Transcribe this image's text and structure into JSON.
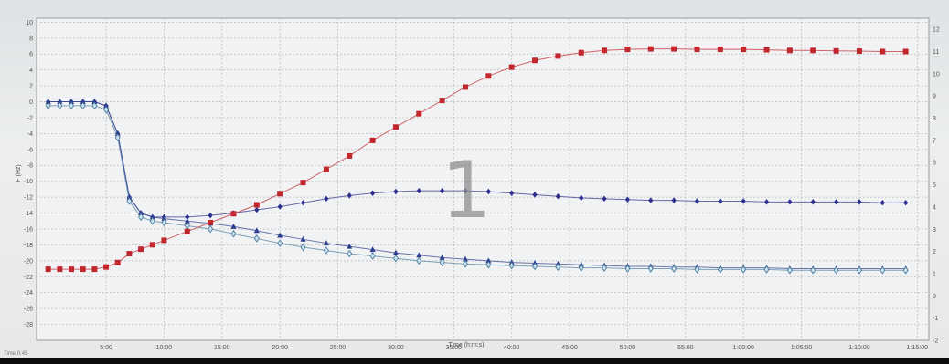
{
  "chart_data": {
    "type": "line",
    "xlabel": "Time (h:m:s)",
    "ylabel": "F (Hz)",
    "overlay_label": "1",
    "status_text": "Time 0:45",
    "x_ticks": [
      "5:00",
      "10:00",
      "15:00",
      "20:00",
      "25:00",
      "30:00",
      "35:00",
      "40:00",
      "45:00",
      "50:00",
      "55:00",
      "1:00:00",
      "1:05:00",
      "1:10:00",
      "1:15:00"
    ],
    "x_tick_minutes": [
      5,
      10,
      15,
      20,
      25,
      30,
      35,
      40,
      45,
      50,
      55,
      60,
      65,
      70,
      75
    ],
    "xlim_minutes": [
      -1,
      76
    ],
    "y_ticks": [
      "10",
      "8",
      "6",
      "4",
      "2",
      "0",
      "-2",
      "-4",
      "-6",
      "-8",
      "-10",
      "-12",
      "-14",
      "-16",
      "-18",
      "-20",
      "-22",
      "-24",
      "-26",
      "-28"
    ],
    "ylim": [
      -30,
      10.5
    ],
    "y2_ticks": [
      "12",
      "11",
      "10",
      "9",
      "8",
      "7",
      "6",
      "5",
      "4",
      "3",
      "2",
      "1",
      "0",
      "-1",
      "-2"
    ],
    "y2lim": [
      -2,
      12.5
    ],
    "grid": true,
    "series": [
      {
        "axis": "left",
        "marker": "diamond",
        "color": "#2c2f8f",
        "x": [
          0,
          1,
          2,
          3,
          4,
          5,
          6,
          7,
          8,
          9,
          10,
          12,
          14,
          16,
          18,
          20,
          22,
          24,
          26,
          28,
          30,
          32,
          34,
          36,
          38,
          40,
          42,
          44,
          46,
          48,
          50,
          52,
          54,
          56,
          58,
          60,
          62,
          64,
          66,
          68,
          70,
          72,
          74
        ],
        "y": [
          0,
          0,
          0,
          0,
          0,
          -0.5,
          -4,
          -12,
          -14,
          -14.5,
          -14.5,
          -14.5,
          -14.3,
          -14,
          -13.6,
          -13.2,
          -12.7,
          -12.2,
          -11.8,
          -11.5,
          -11.3,
          -11.2,
          -11.2,
          -11.2,
          -11.3,
          -11.5,
          -11.7,
          -11.9,
          -12.1,
          -12.2,
          -12.3,
          -12.4,
          -12.4,
          -12.5,
          -12.5,
          -12.5,
          -12.6,
          -12.6,
          -12.6,
          -12.6,
          -12.6,
          -12.7,
          -12.7
        ]
      },
      {
        "axis": "left",
        "marker": "triangle",
        "color": "#2c3f8f",
        "x": [
          0,
          1,
          2,
          3,
          4,
          5,
          6,
          7,
          8,
          9,
          10,
          12,
          14,
          16,
          18,
          20,
          22,
          24,
          26,
          28,
          30,
          32,
          34,
          36,
          38,
          40,
          42,
          44,
          46,
          48,
          50,
          52,
          54,
          56,
          58,
          60,
          62,
          64,
          66,
          68,
          70,
          72,
          74
        ],
        "y": [
          0,
          0,
          0,
          0,
          0,
          -0.5,
          -4,
          -12,
          -14,
          -14.5,
          -14.7,
          -15,
          -15.3,
          -15.7,
          -16.2,
          -16.8,
          -17.3,
          -17.8,
          -18.2,
          -18.6,
          -19,
          -19.3,
          -19.6,
          -19.8,
          -20,
          -20.2,
          -20.3,
          -20.4,
          -20.5,
          -20.6,
          -20.7,
          -20.7,
          -20.8,
          -20.8,
          -20.9,
          -20.9,
          -20.9,
          -21,
          -21,
          -21,
          -21,
          -21,
          -21
        ]
      },
      {
        "axis": "left",
        "marker": "diamond-open",
        "color": "#4a7ea0",
        "x": [
          0,
          1,
          2,
          3,
          4,
          5,
          6,
          7,
          8,
          9,
          10,
          12,
          14,
          16,
          18,
          20,
          22,
          24,
          26,
          28,
          30,
          32,
          34,
          36,
          38,
          40,
          42,
          44,
          46,
          48,
          50,
          52,
          54,
          56,
          58,
          60,
          62,
          64,
          66,
          68,
          70,
          72,
          74
        ],
        "y": [
          -0.5,
          -0.5,
          -0.5,
          -0.5,
          -0.5,
          -1,
          -4.5,
          -12.5,
          -14.5,
          -15,
          -15.2,
          -15.6,
          -16,
          -16.6,
          -17.2,
          -17.8,
          -18.3,
          -18.7,
          -19.1,
          -19.4,
          -19.7,
          -20,
          -20.2,
          -20.4,
          -20.5,
          -20.6,
          -20.7,
          -20.8,
          -20.9,
          -20.9,
          -21,
          -21,
          -21,
          -21.1,
          -21.1,
          -21.1,
          -21.1,
          -21.2,
          -21.2,
          -21.2,
          -21.2,
          -21.2,
          -21.2
        ]
      },
      {
        "axis": "right",
        "marker": "square",
        "color": "#c1272d",
        "x": [
          0,
          1,
          2,
          3,
          4,
          5,
          6,
          7,
          8,
          9,
          10,
          12,
          14,
          16,
          18,
          20,
          22,
          24,
          26,
          28,
          30,
          32,
          34,
          36,
          38,
          40,
          42,
          44,
          46,
          48,
          50,
          52,
          54,
          56,
          58,
          60,
          62,
          64,
          66,
          68,
          70,
          72,
          74
        ],
        "y": [
          1.2,
          1.2,
          1.2,
          1.2,
          1.2,
          1.3,
          1.5,
          1.9,
          2.1,
          2.3,
          2.5,
          2.9,
          3.3,
          3.7,
          4.1,
          4.6,
          5.1,
          5.7,
          6.3,
          7,
          7.6,
          8.2,
          8.8,
          9.4,
          9.9,
          10.3,
          10.6,
          10.8,
          10.95,
          11.05,
          11.1,
          11.12,
          11.12,
          11.1,
          11.1,
          11.1,
          11.08,
          11.05,
          11.05,
          11.03,
          11.02,
          11.0,
          11.0
        ]
      }
    ]
  }
}
